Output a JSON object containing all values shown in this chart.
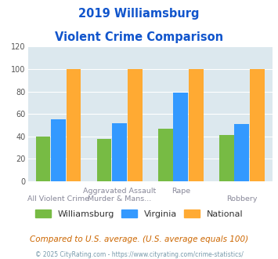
{
  "title_line1": "2019 Williamsburg",
  "title_line2": "Violent Crime Comparison",
  "williamsburg": [
    40,
    38,
    47,
    41
  ],
  "virginia": [
    55,
    52,
    79,
    51
  ],
  "national": [
    100,
    100,
    100,
    100
  ],
  "colors": {
    "williamsburg": "#77bb44",
    "virginia": "#3399ff",
    "national": "#ffaa33"
  },
  "ylim": [
    0,
    120
  ],
  "yticks": [
    0,
    20,
    40,
    60,
    80,
    100,
    120
  ],
  "labels_row1": [
    "",
    "Aggravated Assault",
    "",
    "Rape",
    "",
    "Robbery"
  ],
  "labels_row2": [
    "All Violent Crime",
    "Murder & Mans...",
    "",
    "",
    "",
    ""
  ],
  "legend_labels": [
    "Williamsburg",
    "Virginia",
    "National"
  ],
  "footnote1": "Compared to U.S. average. (U.S. average equals 100)",
  "footnote2": "© 2025 CityRating.com - https://www.cityrating.com/crime-statistics/",
  "bg_color": "#dce8ee",
  "title_color": "#1155cc",
  "footnote1_color": "#cc6600",
  "footnote2_color": "#7799aa"
}
